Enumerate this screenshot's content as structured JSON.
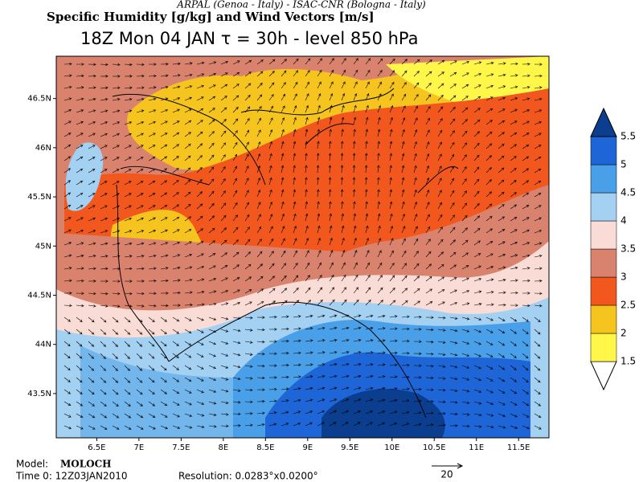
{
  "header": {
    "credit": "ARPAL (Genoa - Italy)  -  ISAC-CNR (Bologna - Italy)",
    "title": "Specific Humidity [g/kg] and Wind Vectors [m/s]",
    "subtitle": "18Z Mon 04 JAN  τ = 30h  -  level 850 hPa"
  },
  "map": {
    "xlim": [
      6.02,
      11.86
    ],
    "ylim": [
      43.05,
      46.93
    ],
    "xticks": [
      {
        "value": 6.5,
        "label": "6.5E"
      },
      {
        "value": 7,
        "label": "7E"
      },
      {
        "value": 7.5,
        "label": "7.5E"
      },
      {
        "value": 8,
        "label": "8E"
      },
      {
        "value": 8.5,
        "label": "8.5E"
      },
      {
        "value": 9,
        "label": "9E"
      },
      {
        "value": 9.5,
        "label": "9.5E"
      },
      {
        "value": 10,
        "label": "10E"
      },
      {
        "value": 10.5,
        "label": "10.5E"
      },
      {
        "value": 11,
        "label": "11E"
      },
      {
        "value": 11.5,
        "label": "11.5E"
      }
    ],
    "yticks": [
      {
        "value": 43.5,
        "label": "43.5N"
      },
      {
        "value": 44,
        "label": "44N"
      },
      {
        "value": 44.5,
        "label": "44.5N"
      },
      {
        "value": 45,
        "label": "45N"
      },
      {
        "value": 45.5,
        "label": "45.5N"
      },
      {
        "value": 46,
        "label": "46N"
      },
      {
        "value": 46.5,
        "label": "46.5N"
      }
    ]
  },
  "colorbar": {
    "levels": [
      1.5,
      2,
      2.5,
      3,
      3.5,
      4,
      4.5,
      5,
      5.5
    ],
    "colors": [
      "#ffffff",
      "#fff64a",
      "#f6c41e",
      "#f2581e",
      "#d9826e",
      "#fadcd6",
      "#a4d0f2",
      "#4aa0e8",
      "#1e66d8",
      "#0b3e8e"
    ]
  },
  "footer": {
    "model_label": "Model:",
    "model": "MOLOCH",
    "time": "Time 0: 12Z03JAN2010",
    "resolution": "Resolution: 0.0283°x0.0200°",
    "vector_scale": "20"
  }
}
